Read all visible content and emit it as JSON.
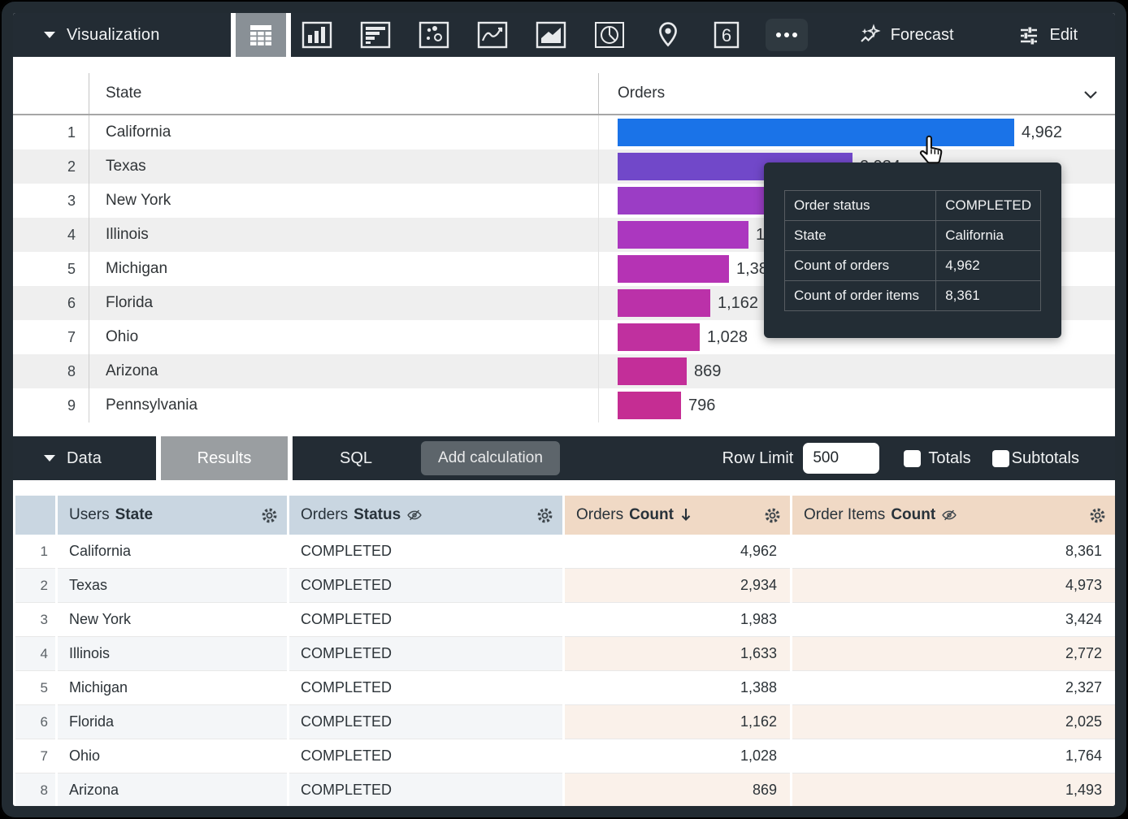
{
  "viz_toolbar": {
    "label": "Visualization",
    "selected_icon": "table",
    "single_value_glyph": "6",
    "forecast_label": "Forecast",
    "edit_label": "Edit"
  },
  "viz_table": {
    "state_header": "State",
    "orders_header": "Orders",
    "rows": [
      {
        "n": "1",
        "state": "California",
        "value": 4962,
        "label": "4,962",
        "color": "#1a73e8"
      },
      {
        "n": "2",
        "state": "Texas",
        "value": 2934,
        "label": "2,934",
        "color": "#7148c9"
      },
      {
        "n": "3",
        "state": "New York",
        "value": 1983,
        "label": "1,983",
        "color": "#9b3dc5"
      },
      {
        "n": "4",
        "state": "Illinois",
        "value": 1633,
        "label": "1,633",
        "color": "#ab37bf"
      },
      {
        "n": "5",
        "state": "Michigan",
        "value": 1388,
        "label": "1,388",
        "color": "#b533b4"
      },
      {
        "n": "6",
        "state": "Florida",
        "value": 1162,
        "label": "1,162",
        "color": "#bb31a9"
      },
      {
        "n": "7",
        "state": "Ohio",
        "value": 1028,
        "label": "1,028",
        "color": "#c0309f"
      },
      {
        "n": "8",
        "state": "Arizona",
        "value": 869,
        "label": "869",
        "color": "#c32e99"
      },
      {
        "n": "9",
        "state": "Pennsylvania",
        "value": 796,
        "label": "796",
        "color": "#c52d93"
      }
    ]
  },
  "tooltip": {
    "rows": [
      {
        "label": "Order status",
        "value": "COMPLETED"
      },
      {
        "label": "State",
        "value": "California"
      },
      {
        "label": "Count of orders",
        "value": "4,962"
      },
      {
        "label": "Count of order items",
        "value": "8,361"
      }
    ]
  },
  "data_toolbar": {
    "label": "Data",
    "results_tab": "Results",
    "sql_tab": "SQL",
    "add_calculation": "Add calculation",
    "row_limit_label": "Row Limit",
    "row_limit_value": "500",
    "totals_label": "Totals",
    "subtotals_label": "Subtotals",
    "totals_checked": false,
    "subtotals_checked": false
  },
  "data_table": {
    "columns": [
      {
        "prefix": "Users",
        "field": "State",
        "hidden": false,
        "sort": ""
      },
      {
        "prefix": "Orders",
        "field": "Status",
        "hidden": true,
        "sort": ""
      },
      {
        "prefix": "Orders",
        "field": "Count",
        "hidden": false,
        "sort": "desc"
      },
      {
        "prefix": "Order Items",
        "field": "Count",
        "hidden": true,
        "sort": ""
      }
    ],
    "rows": [
      {
        "n": "1",
        "state": "California",
        "status": "COMPLETED",
        "orders_count": "4,962",
        "order_items_count": "8,361"
      },
      {
        "n": "2",
        "state": "Texas",
        "status": "COMPLETED",
        "orders_count": "2,934",
        "order_items_count": "4,973"
      },
      {
        "n": "3",
        "state": "New York",
        "status": "COMPLETED",
        "orders_count": "1,983",
        "order_items_count": "3,424"
      },
      {
        "n": "4",
        "state": "Illinois",
        "status": "COMPLETED",
        "orders_count": "1,633",
        "order_items_count": "2,772"
      },
      {
        "n": "5",
        "state": "Michigan",
        "status": "COMPLETED",
        "orders_count": "1,388",
        "order_items_count": "2,327"
      },
      {
        "n": "6",
        "state": "Florida",
        "status": "COMPLETED",
        "orders_count": "1,162",
        "order_items_count": "2,025"
      },
      {
        "n": "7",
        "state": "Ohio",
        "status": "COMPLETED",
        "orders_count": "1,028",
        "order_items_count": "1,764"
      },
      {
        "n": "8",
        "state": "Arizona",
        "status": "COMPLETED",
        "orders_count": "869",
        "order_items_count": "1,493"
      }
    ]
  },
  "colors": {
    "accent_blue": "#1a73e8",
    "toolbar_bg": "#232c34",
    "selected_cell_bg": "#899096",
    "results_tab_bg": "#9a9ea1",
    "dimension_header_bg": "#c9d6e1",
    "measure_header_bg": "#f0d9c5",
    "tooltip_bg": "#232d35"
  }
}
